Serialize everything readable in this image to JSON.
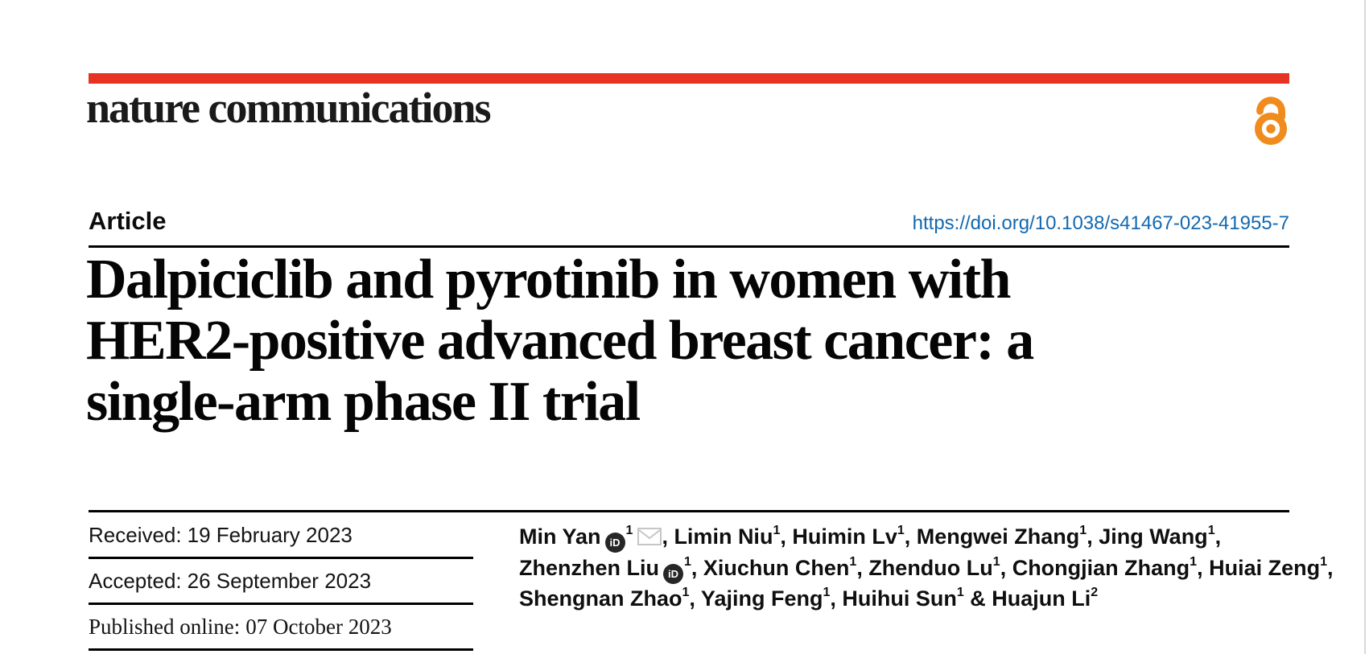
{
  "masthead": {
    "brand": "nature communications",
    "open_access_icon": "open-access-padlock"
  },
  "article_header": {
    "kicker": "Article",
    "doi_link": "https://doi.org/10.1038/s41467-023-41955-7",
    "title_lines": [
      "Dalpiciclib and pyrotinib in women with",
      "HER2-positive advanced breast cancer: a",
      "single-arm phase II trial"
    ]
  },
  "dates": {
    "rows": [
      {
        "label": "Received:",
        "value": "19 February 2023"
      },
      {
        "label": "Accepted:",
        "value": "26 September 2023"
      },
      {
        "label": "Published online:",
        "value": "07 October 2023"
      }
    ]
  },
  "authors": {
    "orcid_glyph": "iD",
    "lines": [
      [
        {
          "type": "text",
          "value": "Min Yan"
        },
        {
          "type": "orcid-icon"
        },
        {
          "type": "sup",
          "value": "1"
        },
        {
          "type": "mail-icon"
        },
        {
          "type": "text",
          "value": ", Limin Niu"
        },
        {
          "type": "sup",
          "value": "1"
        },
        {
          "type": "text",
          "value": ", Huimin Lv"
        },
        {
          "type": "sup",
          "value": "1"
        },
        {
          "type": "text",
          "value": ", Mengwei Zhang"
        },
        {
          "type": "sup",
          "value": "1"
        },
        {
          "type": "text",
          "value": ", Jing Wang"
        },
        {
          "type": "sup",
          "value": "1"
        },
        {
          "type": "text",
          "value": ","
        }
      ],
      [
        {
          "type": "text",
          "value": "Zhenzhen Liu"
        },
        {
          "type": "orcid-icon"
        },
        {
          "type": "sup",
          "value": "1"
        },
        {
          "type": "text",
          "value": ", Xiuchun Chen"
        },
        {
          "type": "sup",
          "value": "1"
        },
        {
          "type": "text",
          "value": ", Zhenduo Lu"
        },
        {
          "type": "sup",
          "value": "1"
        },
        {
          "type": "text",
          "value": ", Chongjian Zhang"
        },
        {
          "type": "sup",
          "value": "1"
        },
        {
          "type": "text",
          "value": ", Huiai Zeng"
        },
        {
          "type": "sup",
          "value": "1"
        },
        {
          "type": "text",
          "value": ","
        }
      ],
      [
        {
          "type": "text",
          "value": "Shengnan Zhao"
        },
        {
          "type": "sup",
          "value": "1"
        },
        {
          "type": "text",
          "value": ", Yajing Feng"
        },
        {
          "type": "sup",
          "value": "1"
        },
        {
          "type": "text",
          "value": ", Huihui Sun"
        },
        {
          "type": "sup",
          "value": "1"
        },
        {
          "type": "text",
          "value": " & Huajun Li"
        },
        {
          "type": "sup",
          "value": "2"
        }
      ]
    ]
  },
  "colors": {
    "masthead_red": "#e63323",
    "link_blue": "#1268b0",
    "open_access_orange": "#f08c1e",
    "rule_black": "#000000",
    "envelope_gray": "#c6c6c6",
    "page_edge_gray": "#d9d9d9"
  }
}
